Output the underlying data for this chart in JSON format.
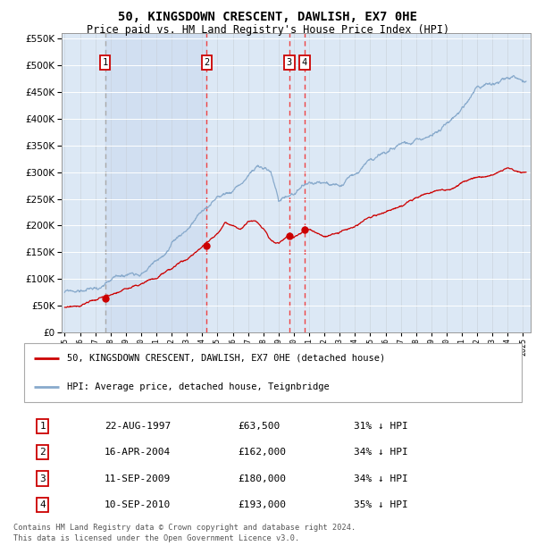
{
  "title": "50, KINGSDOWN CRESCENT, DAWLISH, EX7 0HE",
  "subtitle": "Price paid vs. HM Land Registry's House Price Index (HPI)",
  "sales": [
    {
      "num": 1,
      "date": "22-AUG-1997",
      "year": 1997.64,
      "price": 63500,
      "pct": "31% ↓ HPI"
    },
    {
      "num": 2,
      "date": "16-APR-2004",
      "year": 2004.29,
      "price": 162000,
      "pct": "34% ↓ HPI"
    },
    {
      "num": 3,
      "date": "11-SEP-2009",
      "year": 2009.7,
      "price": 180000,
      "pct": "34% ↓ HPI"
    },
    {
      "num": 4,
      "date": "10-SEP-2010",
      "year": 2010.7,
      "price": 193000,
      "pct": "35% ↓ HPI"
    }
  ],
  "legend_line1": "50, KINGSDOWN CRESCENT, DAWLISH, EX7 0HE (detached house)",
  "legend_line2": "HPI: Average price, detached house, Teignbridge",
  "footer_line1": "Contains HM Land Registry data © Crown copyright and database right 2024.",
  "footer_line2": "This data is licensed under the Open Government Licence v3.0.",
  "red_color": "#cc0000",
  "blue_color": "#88aacc",
  "vline_gray": "#aaaaaa",
  "vline_red": "#ee4444",
  "box_edge_color": "#cc0000",
  "chart_bg": "#dce8f5",
  "shade_color": "#c8d8ee",
  "ylim_max": 560000,
  "xlim_min": 1994.8,
  "xlim_max": 2025.5,
  "ytick_step": 50000,
  "xtick_start": 1995,
  "xtick_end": 2025
}
